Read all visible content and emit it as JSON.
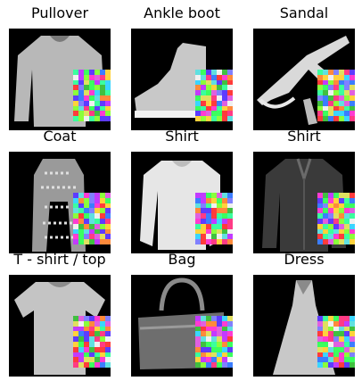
{
  "figure": {
    "images": [
      {
        "title": "Pullover",
        "garment": "pullover",
        "tone": "#b8b8b8"
      },
      {
        "title": "Ankle boot",
        "garment": "ankle-boot",
        "tone": "#c8c8c8"
      },
      {
        "title": "Sandal",
        "garment": "sandal",
        "tone": "#d9d9d9"
      },
      {
        "title": "Coat",
        "garment": "coat",
        "tone": "#9a9a9a"
      },
      {
        "title": "Shirt",
        "garment": "shirt-light",
        "tone": "#e6e6e6"
      },
      {
        "title": "Shirt",
        "garment": "shirt-dark",
        "tone": "#3a3a3a"
      },
      {
        "title": "T - shirt / top",
        "garment": "t-shirt",
        "tone": "#c4c4c4"
      },
      {
        "title": "Bag",
        "garment": "bag",
        "tone": "#6e6e6e"
      },
      {
        "title": "Dress",
        "garment": "dress",
        "tone": "#c8c8c8"
      }
    ]
  }
}
